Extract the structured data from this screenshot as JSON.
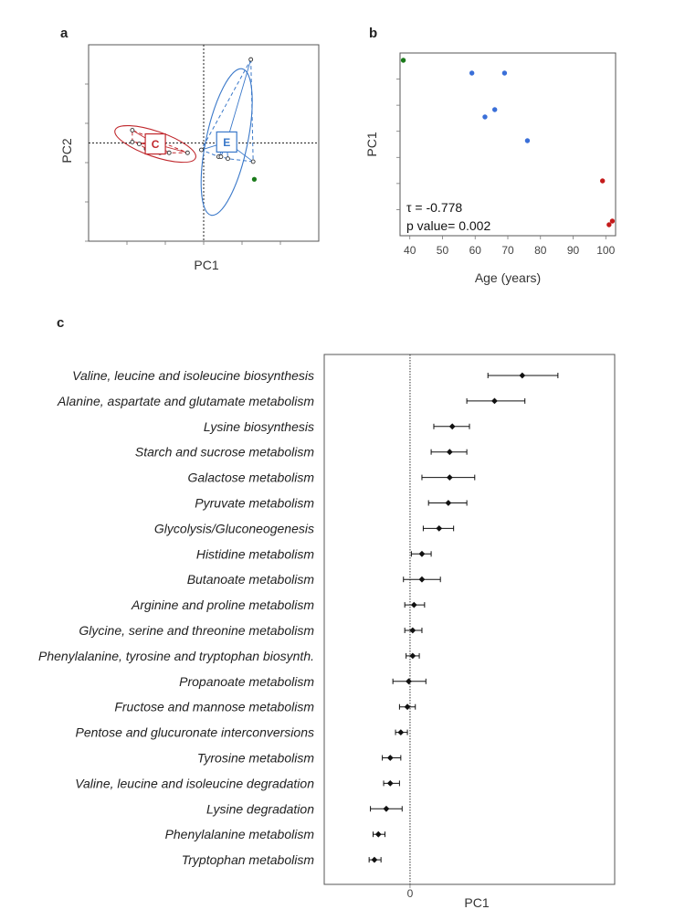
{
  "panels": {
    "a": "a",
    "b": "b",
    "c": "c"
  },
  "colors": {
    "group_c": "#c0282d",
    "group_e": "#3a78c9",
    "green": "#1a7a1a",
    "blue": "#3a6fd8",
    "red": "#c41a1a",
    "black": "#111111"
  },
  "chart_data": [
    {
      "id": "a",
      "type": "scatter",
      "title": "",
      "xlabel": "PC1",
      "ylabel": "PC2",
      "xlim": [
        -1,
        1
      ],
      "ylim": [
        -1,
        1
      ],
      "reference_lines": {
        "x": 0,
        "y": 0
      },
      "groups": [
        {
          "name": "C",
          "centroid": [
            -0.42,
            -0.01
          ],
          "points": [
            [
              -0.62,
              0.13
            ],
            [
              -0.62,
              0.01
            ],
            [
              -0.56,
              -0.01
            ],
            [
              -0.5,
              -0.06
            ],
            [
              -0.44,
              -0.07
            ],
            [
              -0.38,
              -0.1
            ],
            [
              -0.3,
              -0.1
            ],
            [
              -0.14,
              -0.1
            ]
          ],
          "ellipse": {
            "rx": 0.37,
            "ry": 0.11,
            "angle_deg": 19
          }
        },
        {
          "name": "E",
          "centroid": [
            0.2,
            0.01
          ],
          "points": [
            [
              0.41,
              0.85
            ],
            [
              0.43,
              -0.19
            ],
            [
              0.13,
              -0.14
            ],
            [
              0.15,
              -0.14
            ],
            [
              0.21,
              -0.16
            ],
            [
              -0.02,
              -0.07
            ]
          ],
          "ellipse": {
            "rx": 0.65,
            "ry": 0.18,
            "angle_deg": -78
          }
        }
      ],
      "extra_point": {
        "x": 0.44,
        "y": -0.37,
        "color": "green"
      }
    },
    {
      "id": "b",
      "type": "scatter",
      "xlabel": "Age (years)",
      "ylabel": "PC1",
      "xlim": [
        37,
        103
      ],
      "xticks": [
        40,
        50,
        60,
        70,
        80,
        90,
        100
      ],
      "points": [
        {
          "x": 38,
          "y": 0.96,
          "color": "green"
        },
        {
          "x": 59,
          "y": 0.89,
          "color": "blue"
        },
        {
          "x": 69,
          "y": 0.89,
          "color": "blue"
        },
        {
          "x": 66,
          "y": 0.69,
          "color": "blue"
        },
        {
          "x": 63,
          "y": 0.65,
          "color": "blue"
        },
        {
          "x": 76,
          "y": 0.52,
          "color": "blue"
        },
        {
          "x": 99,
          "y": 0.3,
          "color": "red"
        },
        {
          "x": 101,
          "y": 0.06,
          "color": "red"
        },
        {
          "x": 102,
          "y": 0.08,
          "color": "red"
        }
      ],
      "annotations": [
        "τ = -0.778",
        "p value= 0.002"
      ]
    },
    {
      "id": "c",
      "type": "forest",
      "xlabel": "PC1",
      "xticks": [
        0
      ],
      "reference_line": 0,
      "xlim": [
        -0.65,
        1.55
      ],
      "categories": [
        "Valine, leucine and isoleucine biosynthesis",
        "Alanine, aspartate and glutamate metabolism",
        "Lysine biosynthesis",
        "Starch and sucrose metabolism",
        "Galactose metabolism",
        "Pyruvate metabolism",
        "Glycolysis/Gluconeogenesis",
        "Histidine metabolism",
        "Butanoate metabolism",
        "Arginine and proline metabolism",
        "Glycine, serine and threonine metabolism",
        "Phenylalanine, tyrosine and tryptophan biosynth.",
        "Propanoate metabolism",
        "Fructose and mannose metabolism",
        "Pentose and glucuronate interconversions",
        "Tyrosine metabolism",
        "Valine, leucine and isoleucine degradation",
        "Lysine degradation",
        "Phenylalanine metabolism",
        "Tryptophan metabolism"
      ],
      "values": [
        0.85,
        0.64,
        0.32,
        0.3,
        0.3,
        0.29,
        0.22,
        0.09,
        0.09,
        0.03,
        0.02,
        0.02,
        -0.01,
        -0.02,
        -0.07,
        -0.15,
        -0.15,
        -0.18,
        -0.24,
        -0.27
      ],
      "lower": [
        0.59,
        0.43,
        0.18,
        0.16,
        0.09,
        0.14,
        0.1,
        0.01,
        -0.05,
        -0.04,
        -0.04,
        -0.03,
        -0.13,
        -0.08,
        -0.11,
        -0.21,
        -0.2,
        -0.3,
        -0.28,
        -0.31
      ],
      "upper": [
        1.12,
        0.87,
        0.45,
        0.43,
        0.49,
        0.43,
        0.33,
        0.16,
        0.23,
        0.11,
        0.09,
        0.07,
        0.12,
        0.04,
        -0.02,
        -0.07,
        -0.08,
        -0.06,
        -0.19,
        -0.22
      ]
    }
  ]
}
